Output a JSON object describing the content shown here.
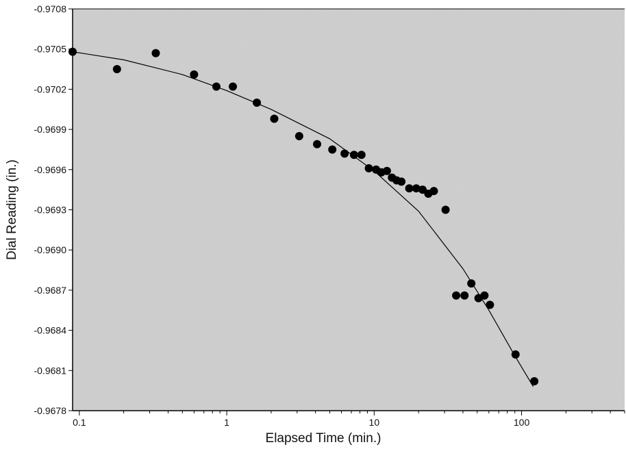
{
  "chart_data": {
    "type": "scatter",
    "title": "",
    "xlabel": "Elapsed Time (min.)",
    "ylabel": "Dial Reading (in.)",
    "x_scale": "log",
    "xlim": [
      0.09,
      500
    ],
    "ylim": [
      -0.9708,
      -0.9678
    ],
    "x_tick_values": [
      0.1,
      1,
      10,
      100
    ],
    "x_tick_labels": [
      "0.1",
      "1",
      "10",
      "100"
    ],
    "y_tick_values": [
      -0.9708,
      -0.9705,
      -0.9702,
      -0.9699,
      -0.9696,
      -0.9693,
      -0.969,
      -0.9687,
      -0.9684,
      -0.9681,
      -0.9678
    ],
    "y_tick_labels": [
      "-0.9708",
      "-0.9705",
      "-0.9702",
      "-0.9699",
      "-0.9696",
      "-0.9693",
      "-0.9690",
      "-0.9687",
      "-0.9684",
      "-0.9681",
      "-0.9678"
    ],
    "grid": false,
    "colors": {
      "plot_background": "#d4d4d4",
      "marker": "#000000",
      "fit_line": "#000000"
    },
    "series": [
      {
        "kind": "points",
        "points": [
          [
            0.09,
            -0.97048
          ],
          [
            0.18,
            -0.97035
          ],
          [
            0.33,
            -0.97047
          ],
          [
            0.6,
            -0.97031
          ],
          [
            0.85,
            -0.97022
          ],
          [
            1.1,
            -0.97022
          ],
          [
            1.6,
            -0.9701
          ],
          [
            2.1,
            -0.96998
          ],
          [
            3.1,
            -0.96985
          ],
          [
            4.1,
            -0.96979
          ],
          [
            5.2,
            -0.96975
          ],
          [
            6.3,
            -0.96972
          ],
          [
            7.3,
            -0.96971
          ],
          [
            8.2,
            -0.96971
          ],
          [
            9.2,
            -0.96961
          ],
          [
            10.3,
            -0.9696
          ],
          [
            11.2,
            -0.96958
          ],
          [
            12.2,
            -0.96959
          ],
          [
            13.2,
            -0.96954
          ],
          [
            14.2,
            -0.96952
          ],
          [
            15.3,
            -0.96951
          ],
          [
            17.3,
            -0.96946
          ],
          [
            19.3,
            -0.96946
          ],
          [
            21.3,
            -0.96945
          ],
          [
            23.3,
            -0.96942
          ],
          [
            25.4,
            -0.96944
          ],
          [
            30.5,
            -0.9693
          ],
          [
            45.6,
            -0.96875
          ],
          [
            36.0,
            -0.96866
          ],
          [
            41.0,
            -0.96866
          ],
          [
            51.0,
            -0.96864
          ],
          [
            56.0,
            -0.96866
          ],
          [
            61.0,
            -0.96859
          ],
          [
            91.0,
            -0.96822
          ],
          [
            122.0,
            -0.96802
          ]
        ]
      },
      {
        "kind": "fit_curve",
        "points": [
          [
            0.09,
            -0.97048
          ],
          [
            0.2,
            -0.97042
          ],
          [
            0.5,
            -0.97031
          ],
          [
            1,
            -0.97019
          ],
          [
            2,
            -0.97005
          ],
          [
            5,
            -0.96983
          ],
          [
            10,
            -0.96959
          ],
          [
            20,
            -0.96929
          ],
          [
            40,
            -0.96886
          ],
          [
            60,
            -0.96855
          ],
          [
            90,
            -0.96821
          ],
          [
            120,
            -0.96798
          ]
        ]
      }
    ]
  }
}
